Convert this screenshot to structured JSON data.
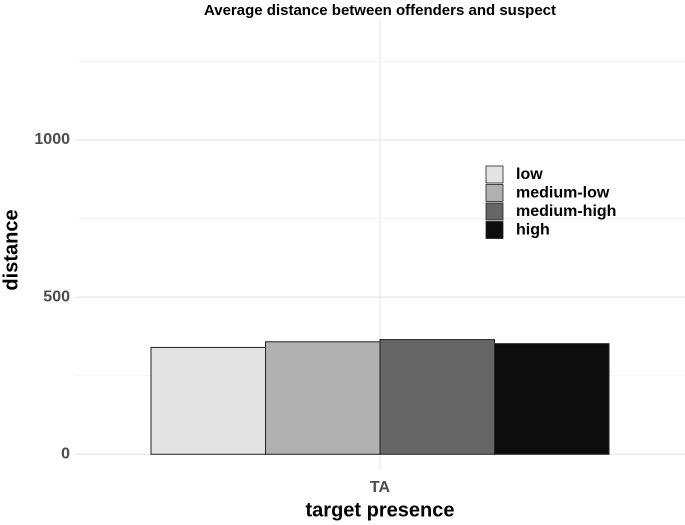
{
  "chart_data": {
    "type": "bar",
    "title": "Average distance between offenders and suspect",
    "x_label": "target presence",
    "y_label": "distance",
    "categories": [
      "TA"
    ],
    "series": [
      {
        "name": "low",
        "color": "#e3e3e3",
        "values": [
          340
        ]
      },
      {
        "name": "medium-low",
        "color": "#b0b0b0",
        "values": [
          358
        ]
      },
      {
        "name": "medium-high",
        "color": "#666666",
        "values": [
          365
        ]
      },
      {
        "name": "high",
        "color": "#0d0d0d",
        "values": [
          352
        ]
      }
    ],
    "ylim": [
      -50,
      1350
    ],
    "yticks": [
      0,
      500,
      1000
    ],
    "minor_yticks": [
      250,
      750,
      1250
    ],
    "grid": true,
    "legend": "right"
  }
}
